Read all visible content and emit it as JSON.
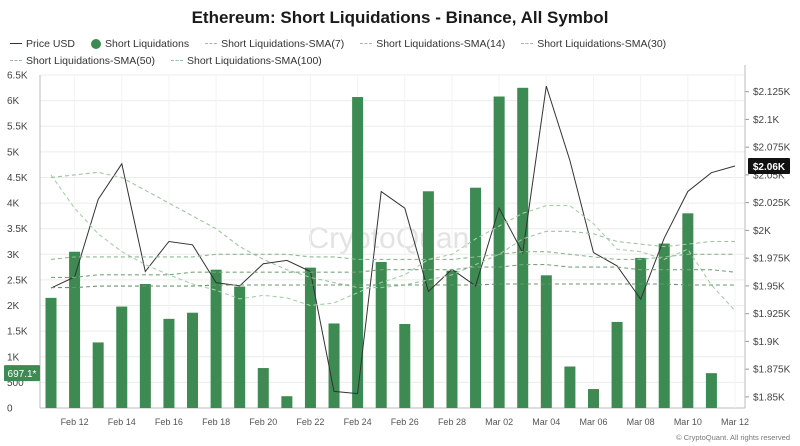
{
  "title": "Ethereum: Short Liquidations - Binance, All Symbol",
  "legend": [
    {
      "label": "Price USD",
      "style": "line",
      "color": "#333333"
    },
    {
      "label": "Short Liquidations",
      "style": "dot",
      "color": "#3d8a52"
    },
    {
      "label": "Short Liquidations-SMA(7)",
      "style": "dash",
      "color": "#a6cfa8"
    },
    {
      "label": "Short Liquidations-SMA(14)",
      "style": "dash",
      "color": "#a0c4a2"
    },
    {
      "label": "Short Liquidations-SMA(30)",
      "style": "dash",
      "color": "#8fb893"
    },
    {
      "label": "Short Liquidations-SMA(50)",
      "style": "dash",
      "color": "#7aa57e"
    },
    {
      "label": "Short Liquidations-SMA(100)",
      "style": "dash",
      "color": "#6a946e"
    }
  ],
  "watermark": "CryptoQuant",
  "copyright": "© CryptoQuant. All rights reserved",
  "chart_data": {
    "type": "bar",
    "x": [
      "Feb 11",
      "Feb 12",
      "Feb 13",
      "Feb 14",
      "Feb 15",
      "Feb 16",
      "Feb 17",
      "Feb 18",
      "Feb 19",
      "Feb 20",
      "Feb 21",
      "Feb 22",
      "Feb 23",
      "Feb 24",
      "Feb 25",
      "Feb 26",
      "Feb 27",
      "Feb 28",
      "Mar 01",
      "Mar 02",
      "Mar 03",
      "Mar 04",
      "Mar 05",
      "Mar 06",
      "Mar 07",
      "Mar 08",
      "Mar 09",
      "Mar 10",
      "Mar 11",
      "Mar 12"
    ],
    "x_tick_labels": [
      "Feb 12",
      "Feb 14",
      "Feb 16",
      "Feb 18",
      "Feb 20",
      "Feb 22",
      "Feb 24",
      "Feb 26",
      "Feb 28",
      "Mar 02",
      "Mar 04",
      "Mar 06",
      "Mar 08",
      "Mar 10",
      "Mar 12"
    ],
    "left_axis": {
      "ylim": [
        0,
        6500
      ],
      "ticks": [
        0,
        500,
        1000,
        1500,
        2000,
        2500,
        3000,
        3500,
        4000,
        4500,
        5000,
        5500,
        6000,
        6500
      ],
      "tick_labels": [
        "0",
        "500",
        "1K",
        "1.5K",
        "2K",
        "2.5K",
        "3K",
        "3.5K",
        "4K",
        "4.5K",
        "5K",
        "5.5K",
        "6K",
        "6.5K"
      ]
    },
    "right_axis": {
      "ylim": [
        1.84,
        2.14
      ],
      "ticks": [
        1.85,
        1.875,
        1.9,
        1.925,
        1.95,
        1.975,
        2.0,
        2.025,
        2.05,
        2.075,
        2.1,
        2.125
      ],
      "tick_labels": [
        "$1.85K",
        "$1.875K",
        "$1.9K",
        "$1.925K",
        "$1.95K",
        "$1.975K",
        "$2K",
        "$2.025K",
        "$2.05K",
        "$2.075K",
        "$2.1K",
        "$2.125K"
      ]
    },
    "series": [
      {
        "name": "Short Liquidations",
        "kind": "bar",
        "axis": "left",
        "color": "#3d8a52",
        "values": [
          2150,
          3050,
          1280,
          1980,
          2420,
          1740,
          1860,
          2700,
          2370,
          780,
          230,
          2740,
          1650,
          6070,
          2850,
          1640,
          4230,
          2680,
          4300,
          6080,
          6250,
          2590,
          810,
          370,
          1680,
          2930,
          3210,
          3800,
          680,
          null
        ]
      },
      {
        "name": "Price USD",
        "kind": "line",
        "axis": "right",
        "color": "#333333",
        "values": [
          1.948,
          1.958,
          2.028,
          2.06,
          1.963,
          1.99,
          1.987,
          1.953,
          1.95,
          1.97,
          1.973,
          1.963,
          1.855,
          1.853,
          2.035,
          2.02,
          1.945,
          1.965,
          1.95,
          2.02,
          1.98,
          2.13,
          2.063,
          1.98,
          1.968,
          1.938,
          1.993,
          2.035,
          2.052,
          2.058
        ]
      },
      {
        "name": "Short Liquidations-SMA(7)",
        "kind": "line",
        "axis": "left",
        "color": "#a6cfa8",
        "values": [
          4550,
          3900,
          3400,
          3050,
          2800,
          2600,
          2420,
          2300,
          2130,
          2200,
          2150,
          2000,
          2050,
          2250,
          2450,
          2600,
          2900,
          3000,
          3300,
          3550,
          3800,
          3950,
          3950,
          3600,
          3100,
          3050,
          2900,
          3100,
          2400,
          1900
        ]
      },
      {
        "name": "Short Liquidations-SMA(14)",
        "kind": "line",
        "axis": "left",
        "color": "#a0c4a2",
        "values": [
          4500,
          4550,
          4600,
          4500,
          4250,
          4000,
          3750,
          3500,
          3150,
          2900,
          2700,
          2550,
          2450,
          2350,
          2350,
          2400,
          2500,
          2600,
          2800,
          3000,
          3300,
          3450,
          3450,
          3400,
          3250,
          3200,
          3150,
          3200,
          3250,
          3250
        ]
      },
      {
        "name": "Short Liquidations-SMA(30)",
        "kind": "line",
        "axis": "left",
        "color": "#8fb893",
        "values": [
          2900,
          2950,
          2950,
          2950,
          2950,
          2950,
          2950,
          3000,
          3000,
          3000,
          3000,
          2950,
          2950,
          2900,
          2900,
          2900,
          2900,
          2900,
          2950,
          3000,
          3050,
          3050,
          3000,
          2950,
          2900,
          2900,
          2950,
          3000,
          3000,
          3000
        ]
      },
      {
        "name": "Short Liquidations-SMA(50)",
        "kind": "line",
        "axis": "left",
        "color": "#7aa57e",
        "values": [
          2550,
          2550,
          2600,
          2600,
          2600,
          2600,
          2650,
          2650,
          2650,
          2650,
          2650,
          2650,
          2650,
          2650,
          2700,
          2700,
          2700,
          2700,
          2750,
          2750,
          2800,
          2800,
          2750,
          2750,
          2750,
          2700,
          2700,
          2700,
          2700,
          2650
        ]
      },
      {
        "name": "Short Liquidations-SMA(100)",
        "kind": "line",
        "axis": "left",
        "color": "#6a946e",
        "values": [
          2350,
          2350,
          2380,
          2380,
          2380,
          2380,
          2380,
          2400,
          2400,
          2400,
          2400,
          2400,
          2400,
          2400,
          2400,
          2400,
          2400,
          2400,
          2400,
          2420,
          2420,
          2420,
          2420,
          2420,
          2420,
          2420,
          2420,
          2400,
          2400,
          2400
        ]
      }
    ],
    "current_value_labels": {
      "left": "697.1*",
      "right": "$2.06K"
    },
    "grid": true
  }
}
